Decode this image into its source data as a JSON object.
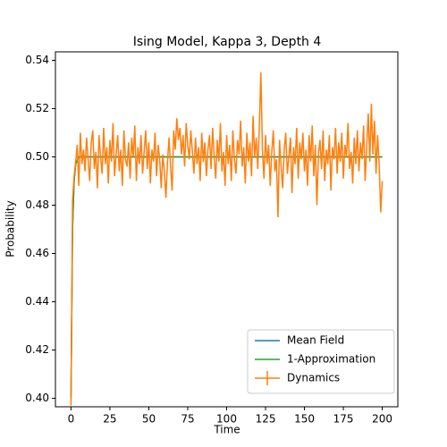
{
  "chart_data": {
    "type": "line",
    "title": "Ising Model, Kappa 3, Depth 4",
    "x_label": "Time",
    "y_label": "Probability",
    "xlim": [
      -10,
      210
    ],
    "ylim": [
      0.3965,
      0.5435
    ],
    "xticks": [
      0,
      25,
      50,
      75,
      100,
      125,
      150,
      175,
      200
    ],
    "yticks": [
      {
        "value": 0.4,
        "label": "0.40"
      },
      0.42,
      0.44,
      0.46,
      0.48,
      {
        "value": 0.5,
        "label": "0.50"
      },
      0.52,
      0.54
    ],
    "legend": "lower right",
    "series": [
      {
        "name": "Mean Field",
        "color": "#1f77b4",
        "x": [
          0,
          1,
          2,
          3,
          5,
          10,
          200
        ],
        "values": [
          0.4,
          0.47,
          0.49,
          0.497,
          0.5,
          0.5,
          0.5
        ]
      },
      {
        "name": "1-Approximation",
        "color": "#2ca02c",
        "x": [
          0,
          1,
          2,
          3,
          5,
          10,
          200
        ],
        "values": [
          0.401,
          0.471,
          0.49,
          0.497,
          0.5,
          0.5,
          0.5
        ]
      },
      {
        "name": "Dynamics",
        "color": "#ff7f0e",
        "x": [
          0,
          1,
          2,
          3,
          4,
          5,
          6,
          7,
          8,
          9,
          10,
          11,
          12,
          13,
          14,
          15,
          16,
          17,
          18,
          19,
          20,
          21,
          22,
          23,
          24,
          25,
          26,
          27,
          28,
          29,
          30,
          31,
          32,
          33,
          34,
          35,
          36,
          37,
          38,
          39,
          40,
          41,
          42,
          43,
          44,
          45,
          46,
          47,
          48,
          49,
          50,
          51,
          52,
          53,
          54,
          55,
          56,
          57,
          58,
          59,
          60,
          61,
          62,
          63,
          64,
          65,
          66,
          67,
          68,
          69,
          70,
          71,
          72,
          73,
          74,
          75,
          76,
          77,
          78,
          79,
          80,
          81,
          82,
          83,
          84,
          85,
          86,
          87,
          88,
          89,
          90,
          91,
          92,
          93,
          94,
          95,
          96,
          97,
          98,
          99,
          100,
          101,
          102,
          103,
          104,
          105,
          106,
          107,
          108,
          109,
          110,
          111,
          112,
          113,
          114,
          115,
          116,
          117,
          118,
          119,
          120,
          121,
          122,
          123,
          124,
          125,
          126,
          127,
          128,
          129,
          130,
          131,
          132,
          133,
          134,
          135,
          136,
          137,
          138,
          139,
          140,
          141,
          142,
          143,
          144,
          145,
          146,
          147,
          148,
          149,
          150,
          151,
          152,
          153,
          154,
          155,
          156,
          157,
          158,
          159,
          160,
          161,
          162,
          163,
          164,
          165,
          166,
          167,
          168,
          169,
          170,
          171,
          172,
          173,
          174,
          175,
          176,
          177,
          178,
          179,
          180,
          181,
          182,
          183,
          184,
          185,
          186,
          187,
          188,
          189,
          190,
          191,
          192,
          193,
          194,
          195,
          196,
          197,
          198,
          199,
          200
        ],
        "values": [
          0.397,
          0.482,
          0.492,
          0.498,
          0.505,
          0.488,
          0.51,
          0.497,
          0.503,
          0.494,
          0.508,
          0.499,
          0.49,
          0.506,
          0.511,
          0.495,
          0.502,
          0.487,
          0.509,
          0.5,
          0.493,
          0.512,
          0.497,
          0.504,
          0.489,
          0.507,
          0.498,
          0.514,
          0.492,
          0.501,
          0.509,
          0.494,
          0.503,
          0.488,
          0.511,
          0.499,
          0.496,
          0.506,
          0.491,
          0.508,
          0.5,
          0.513,
          0.49,
          0.504,
          0.497,
          0.509,
          0.493,
          0.502,
          0.511,
          0.495,
          0.506,
          0.489,
          0.503,
          0.498,
          0.51,
          0.492,
          0.505,
          0.499,
          0.487,
          0.501,
          0.494,
          0.483,
          0.498,
          0.508,
          0.496,
          0.486,
          0.511,
          0.503,
          0.516,
          0.507,
          0.512,
          0.501,
          0.509,
          0.496,
          0.514,
          0.505,
          0.499,
          0.511,
          0.502,
          0.493,
          0.508,
          0.497,
          0.504,
          0.49,
          0.51,
          0.498,
          0.506,
          0.492,
          0.503,
          0.509,
          0.495,
          0.512,
          0.5,
          0.491,
          0.507,
          0.498,
          0.514,
          0.494,
          0.502,
          0.488,
          0.509,
          0.497,
          0.505,
          0.49,
          0.511,
          0.499,
          0.493,
          0.507,
          0.501,
          0.515,
          0.496,
          0.504,
          0.489,
          0.51,
          0.498,
          0.506,
          0.492,
          0.517,
          0.5,
          0.508,
          0.495,
          0.512,
          0.535,
          0.503,
          0.491,
          0.509,
          0.497,
          0.505,
          0.488,
          0.502,
          0.511,
          0.494,
          0.499,
          0.475,
          0.507,
          0.496,
          0.487,
          0.503,
          0.51,
          0.493,
          0.5,
          0.508,
          0.485,
          0.504,
          0.497,
          0.512,
          0.491,
          0.506,
          0.499,
          0.51,
          0.494,
          0.503,
          0.488,
          0.509,
          0.498,
          0.513,
          0.492,
          0.505,
          0.48,
          0.501,
          0.507,
          0.495,
          0.511,
          0.49,
          0.503,
          0.497,
          0.509,
          0.486,
          0.504,
          0.499,
          0.512,
          0.493,
          0.506,
          0.498,
          0.51,
          0.491,
          0.505,
          0.5,
          0.514,
          0.495,
          0.502,
          0.489,
          0.508,
          0.497,
          0.511,
          0.494,
          0.506,
          0.499,
          0.513,
          0.49,
          0.504,
          0.518,
          0.498,
          0.522,
          0.501,
          0.515,
          0.493,
          0.509,
          0.497,
          0.477,
          0.49
        ]
      }
    ]
  }
}
